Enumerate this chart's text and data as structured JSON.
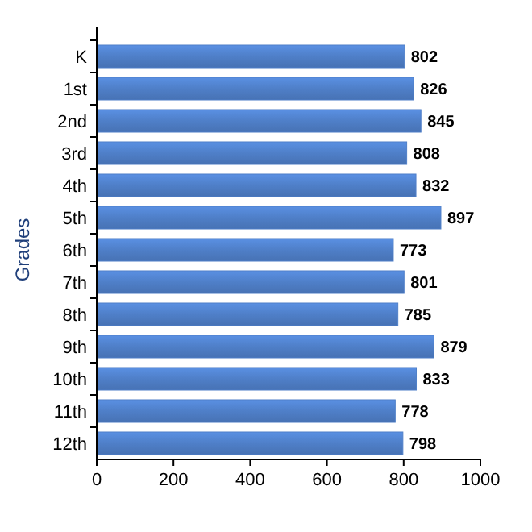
{
  "chart_data": {
    "type": "bar",
    "orientation": "horizontal",
    "ylabel": "Grades",
    "categories": [
      "K",
      "1st",
      "2nd",
      "3rd",
      "4th",
      "5th",
      "6th",
      "7th",
      "8th",
      "9th",
      "10th",
      "11th",
      "12th"
    ],
    "values": [
      802,
      826,
      845,
      808,
      832,
      897,
      773,
      801,
      785,
      879,
      833,
      778,
      798
    ],
    "color": "#4f7fc8",
    "xlim": [
      0,
      1000
    ],
    "xticks": [
      0,
      200,
      400,
      600,
      800,
      1000
    ],
    "data_labels": true
  }
}
